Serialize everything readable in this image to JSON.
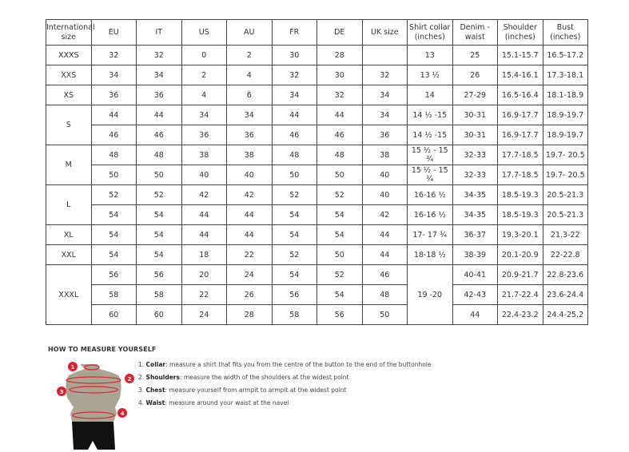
{
  "headers": [
    "International size",
    "EU",
    "IT",
    "US",
    "AU",
    "FR",
    "DE",
    "UK size",
    "Shirt collar (inches)",
    "Denim - waist",
    "Shoulder (inches)",
    "Bust (inches)"
  ],
  "groups": [
    {
      "size": "XXXS",
      "rows": [
        [
          "32",
          "32",
          "0",
          "2",
          "30",
          "28",
          "",
          "13",
          "25",
          "15.1-15.7",
          "16.5-17.2"
        ]
      ]
    },
    {
      "size": "XXS",
      "rows": [
        [
          "34",
          "34",
          "2",
          "4",
          "32",
          "30",
          "32",
          "13 ½",
          "26",
          "15.4-16.1",
          "17.3-18.1"
        ]
      ]
    },
    {
      "size": "XS",
      "rows": [
        [
          "36",
          "36",
          "4",
          "6",
          "34",
          "32",
          "34",
          "14",
          "27-29",
          "16.5-16.4",
          "18.1-18.9"
        ]
      ]
    },
    {
      "size": "S",
      "rows": [
        [
          "44",
          "44",
          "34",
          "34",
          "44",
          "44",
          "34",
          "14 ½ -15",
          "30-31",
          "16.9-17.7",
          "18.9-19.7"
        ],
        [
          "46",
          "46",
          "36",
          "36",
          "46",
          "46",
          "36",
          "14 ½ -15",
          "30-31",
          "16.9-17.7",
          "18.9-19.7"
        ]
      ]
    },
    {
      "size": "M",
      "rows": [
        [
          "48",
          "48",
          "38",
          "38",
          "48",
          "48",
          "38",
          "15 ½ - 15 ¾",
          "32-33",
          "17.7-18.5",
          "19.7- 20.5"
        ],
        [
          "50",
          "50",
          "40",
          "40",
          "50",
          "50",
          "40",
          "15 ½ - 15 ¾",
          "32-33",
          "17.7-18.5",
          "19.7- 20.5"
        ]
      ]
    },
    {
      "size": "L",
      "rows": [
        [
          "52",
          "52",
          "42",
          "42",
          "52",
          "52",
          "40",
          "16-16 ½",
          "34-35",
          "18.5-19.3",
          "20.5-21.3"
        ],
        [
          "54",
          "54",
          "44",
          "44",
          "54",
          "54",
          "42",
          "16-16 ½",
          "34-35",
          "18.5-19.3",
          "20.5-21.3"
        ]
      ]
    },
    {
      "size": "XL",
      "rows": [
        [
          "54",
          "54",
          "44",
          "44",
          "54",
          "54",
          "44",
          "17- 17 ¾",
          "36-37",
          "19.3-20.1",
          "21.3-22"
        ]
      ]
    },
    {
      "size": "XXL",
      "rows": [
        [
          "54",
          "54",
          "18",
          "22",
          "52",
          "50",
          "44",
          "18-18 ½",
          "38-39",
          "20.1-20.9",
          "22-22.8"
        ]
      ]
    },
    {
      "size": "XXXL",
      "collar_merged": "19 -20",
      "rows": [
        [
          "56",
          "56",
          "20",
          "24",
          "54",
          "52",
          "46",
          null,
          "40-41",
          "20.9-21.7",
          "22.8-23.6"
        ],
        [
          "58",
          "58",
          "22",
          "26",
          "56",
          "54",
          "48",
          null,
          "42-43",
          "21.7-22.4",
          "23.6-24.4"
        ],
        [
          "60",
          "60",
          "24",
          "28",
          "58",
          "56",
          "50",
          null,
          "44",
          "22.4-23.2",
          "24.4-25.2"
        ]
      ]
    }
  ],
  "howto": {
    "title": "HOW TO MEASURE YOURSELF",
    "steps": [
      {
        "num": "1.",
        "label": "Collar",
        "text": ": measure a shirt that fits you from the centre of the button to the end of the buttonhole"
      },
      {
        "num": "2.",
        "label": "Shoulders",
        "text": ": measure the width of the shoulders at the widest point"
      },
      {
        "num": "3.",
        "label": "Chest",
        "text": ": measure yourself from armpit to armpit at the widest point"
      },
      {
        "num": "4.",
        "label": "Waist",
        "text": ": measure around your waist at the navel"
      }
    ],
    "markers": [
      "1",
      "2",
      "3",
      "4"
    ]
  },
  "colors": {
    "accent": "#e02030",
    "torso": "#a8a692",
    "shorts": "#111111"
  }
}
